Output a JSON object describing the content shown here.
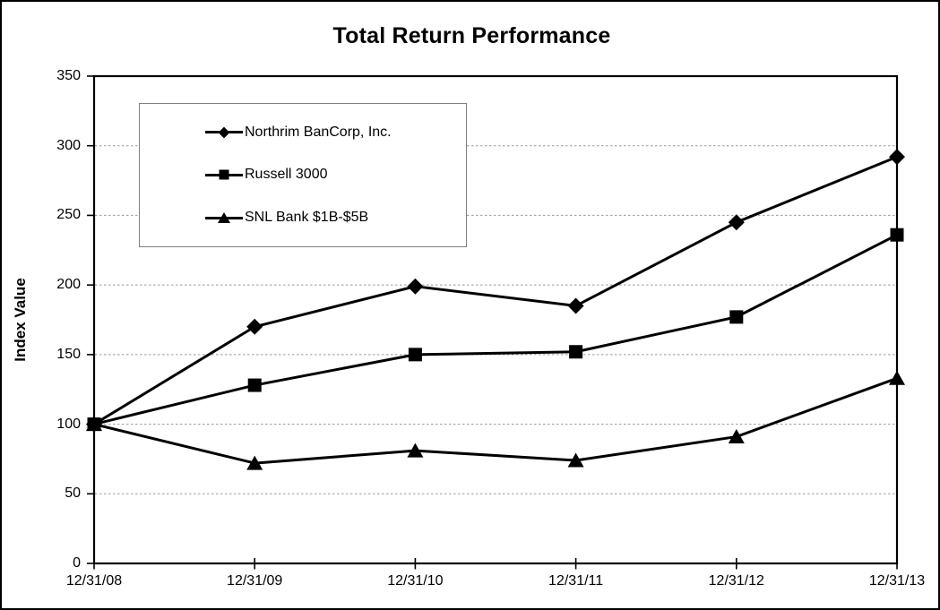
{
  "chart_data": {
    "type": "line",
    "title": "Total Return Performance",
    "xlabel": "",
    "ylabel": "Index Value",
    "categories": [
      "12/31/08",
      "12/31/09",
      "12/31/10",
      "12/31/11",
      "12/31/12",
      "12/31/13"
    ],
    "series": [
      {
        "name": "Northrim BanCorp, Inc.",
        "marker": "diamond",
        "values": [
          100,
          170,
          199,
          185,
          245,
          292
        ]
      },
      {
        "name": "Russell 3000",
        "marker": "square",
        "values": [
          100,
          128,
          150,
          152,
          177,
          236
        ]
      },
      {
        "name": "SNL Bank $1B-$5B",
        "marker": "triangle",
        "values": [
          100,
          72,
          81,
          74,
          91,
          133
        ]
      }
    ],
    "ylim": [
      0,
      350
    ],
    "y_ticks": [
      0,
      50,
      100,
      150,
      200,
      250,
      300,
      350
    ],
    "grid": "horizontal-dashed",
    "legend_position": "upper-left-inside",
    "line_color": "#000000",
    "grid_color": "#999999",
    "axis_color": "#000000",
    "legend_border_color": "#808080",
    "background": "#ffffff"
  }
}
